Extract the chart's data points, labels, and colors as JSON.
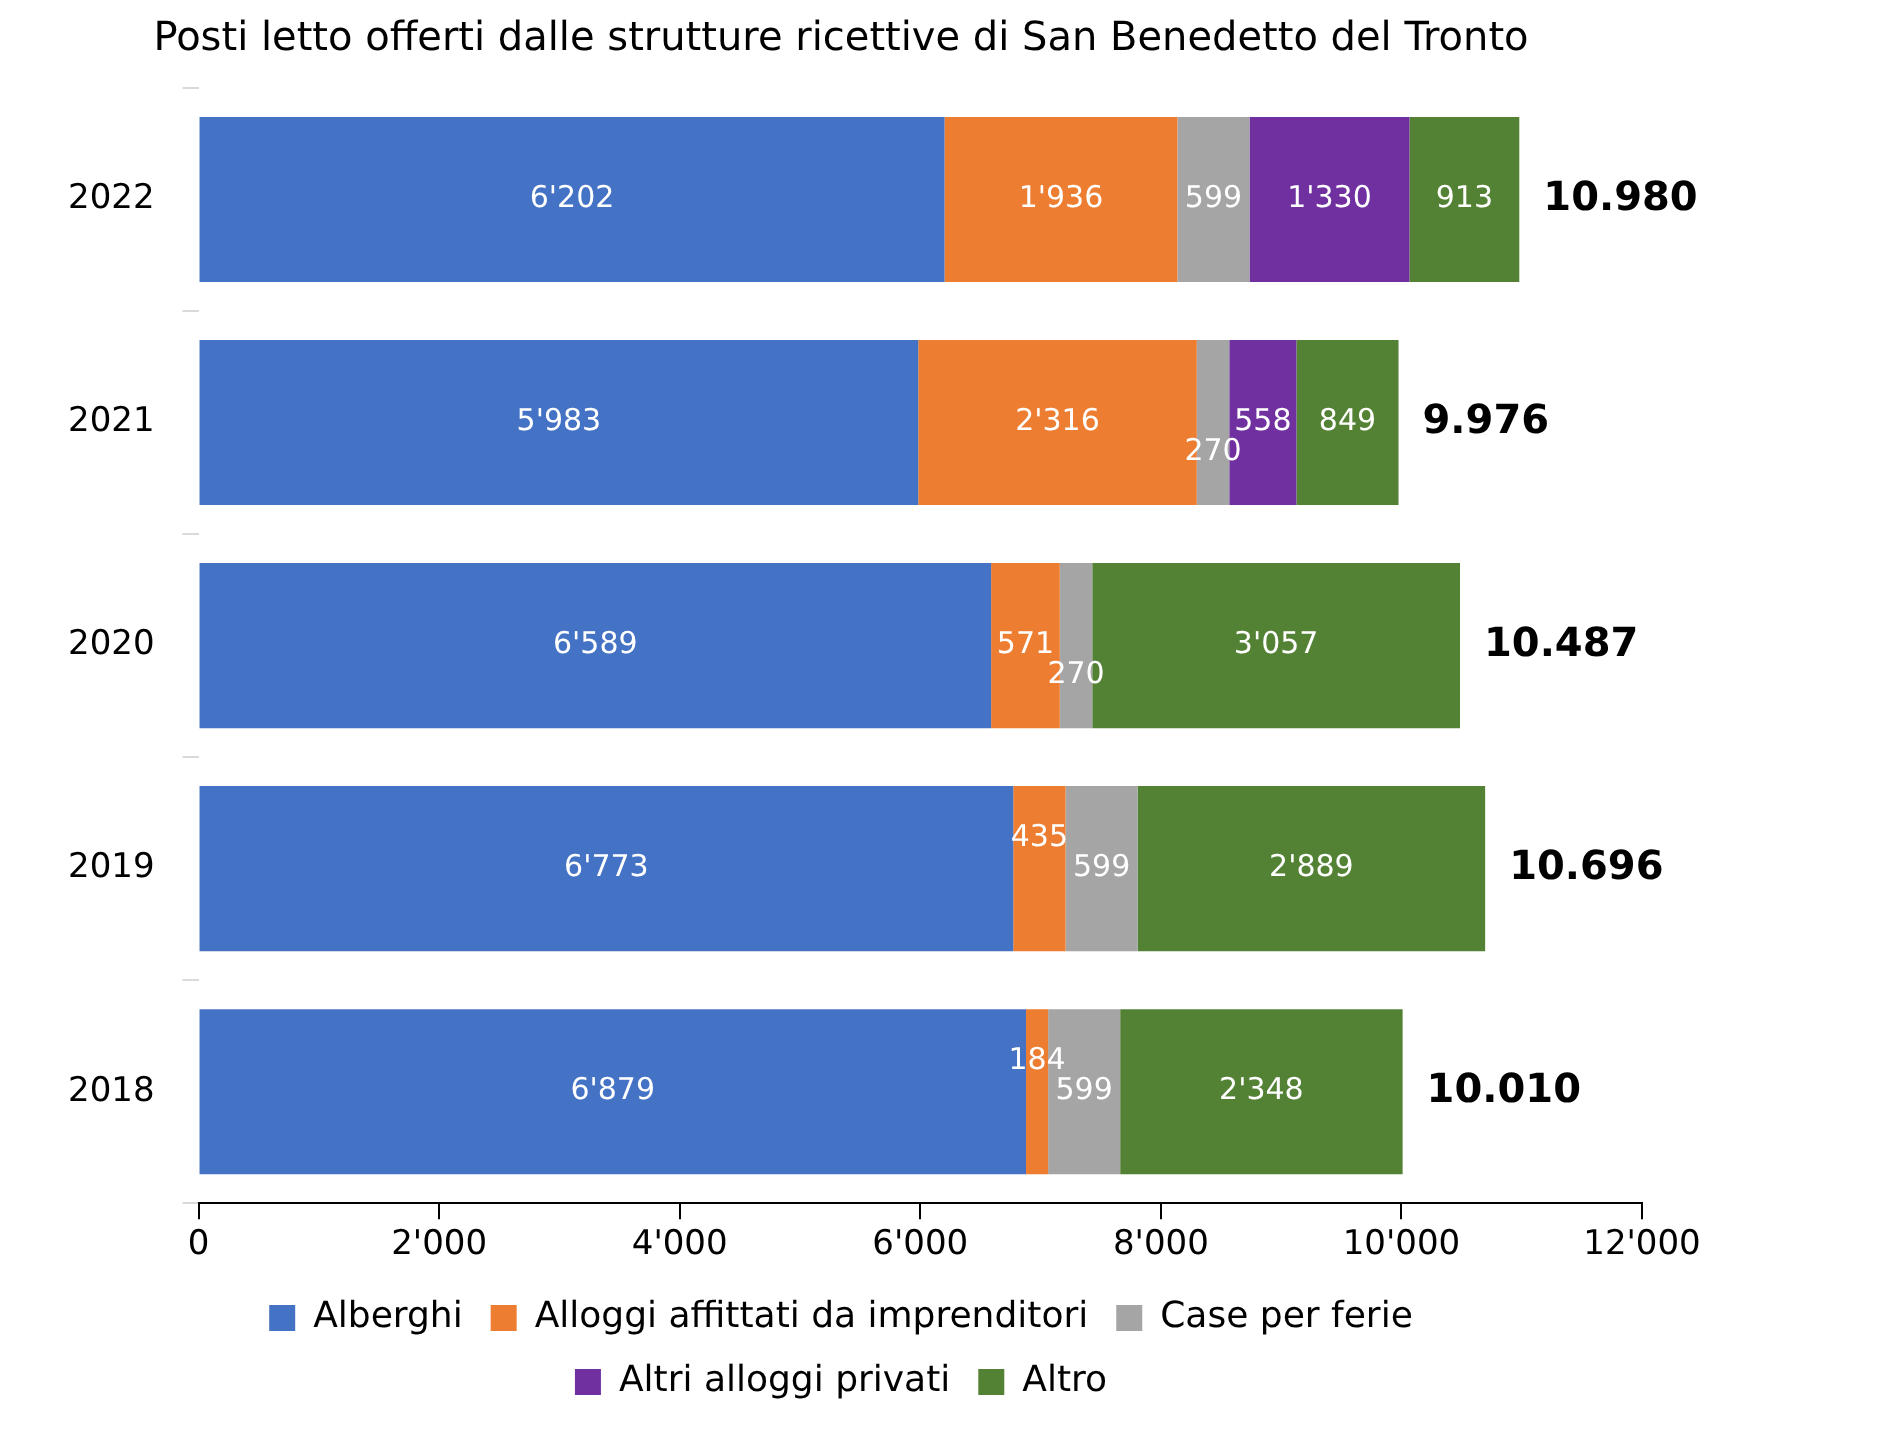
{
  "chart_data": {
    "type": "bar",
    "orientation": "horizontal",
    "stacked": true,
    "title": "Posti letto offerti dalle strutture ricettive di San Benedetto del Tronto",
    "categories": [
      "2022",
      "2021",
      "2020",
      "2019",
      "2018"
    ],
    "series": [
      {
        "name": "Alberghi",
        "color": "#4472c4",
        "values": [
          6202,
          5983,
          6589,
          6773,
          6879
        ],
        "value_labels": [
          "6'202",
          "5'983",
          "6'589",
          "6'773",
          "6'879"
        ]
      },
      {
        "name": "Alloggi affittati da imprenditori",
        "color": "#ed7d31",
        "values": [
          1936,
          2316,
          571,
          435,
          184
        ],
        "value_labels": [
          "1'936",
          "2'316",
          "571",
          "435",
          "184"
        ]
      },
      {
        "name": "Case per ferie",
        "color": "#a5a5a5",
        "values": [
          599,
          270,
          270,
          599,
          599
        ],
        "value_labels": [
          "599",
          "270",
          "270",
          "599",
          "599"
        ]
      },
      {
        "name": "Altri alloggi privati",
        "color": "#7030a0",
        "values": [
          1330,
          558,
          null,
          null,
          null
        ],
        "value_labels": [
          "1'330",
          "558",
          null,
          null,
          null
        ]
      },
      {
        "name": "Altro",
        "color": "#548235",
        "values": [
          913,
          849,
          3057,
          2889,
          2348
        ],
        "value_labels": [
          "913",
          "849",
          "3'057",
          "2'889",
          "2'348"
        ]
      }
    ],
    "totals": [
      "10.980",
      "9.976",
      "10.487",
      "10.696",
      "10.010"
    ],
    "xlim": [
      0,
      12000
    ],
    "xticks": [
      0,
      {
        "value": 2000,
        "label": "2'000"
      },
      {
        "value": 4000,
        "label": "4'000"
      },
      {
        "value": 6000,
        "label": "6'000"
      },
      {
        "value": 8000,
        "label": "8'000"
      },
      {
        "value": 10000,
        "label": "10'000"
      },
      {
        "value": 12000,
        "label": "12'000"
      }
    ],
    "grid": false,
    "legend": "bottom"
  }
}
